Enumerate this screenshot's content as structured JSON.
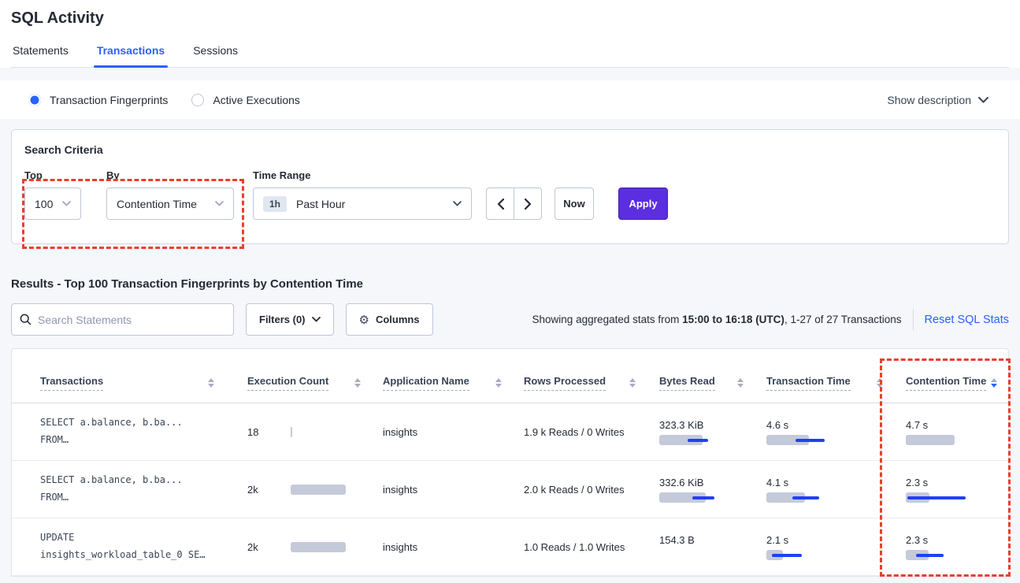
{
  "page": {
    "title": "SQL Activity"
  },
  "tabs": [
    {
      "label": "Statements"
    },
    {
      "label": "Transactions"
    },
    {
      "label": "Sessions"
    }
  ],
  "view_toggle": {
    "options": [
      {
        "label": "Transaction Fingerprints",
        "selected": true
      },
      {
        "label": "Active Executions",
        "selected": false
      }
    ],
    "show_description_label": "Show description"
  },
  "search_criteria": {
    "title": "Search Criteria",
    "top": {
      "label": "Top",
      "value": "100"
    },
    "by": {
      "label": "By",
      "value": "Contention Time"
    },
    "time_range": {
      "label": "Time Range",
      "badge": "1h",
      "value": "Past Hour"
    },
    "now_label": "Now",
    "apply_label": "Apply"
  },
  "results": {
    "heading": "Results - Top 100 Transaction Fingerprints by Contention Time",
    "search_placeholder": "Search Statements",
    "filters_label": "Filters (0)",
    "columns_label": "Columns",
    "stats_prefix": "Showing aggregated stats from ",
    "stats_bold": "15:00 to 16:18 (UTC)",
    "stats_suffix": ", 1-27 of 27 Transactions",
    "reset_label": "Reset SQL Stats"
  },
  "table": {
    "columns": [
      {
        "label": "Transactions",
        "sort": "none"
      },
      {
        "label": "Execution Count",
        "sort": "none"
      },
      {
        "label": "Application Name",
        "sort": "none"
      },
      {
        "label": "Rows Processed",
        "sort": "none"
      },
      {
        "label": "Bytes Read",
        "sort": "none"
      },
      {
        "label": "Transaction Time",
        "sort": "none"
      },
      {
        "label": "Contention Time",
        "sort": "desc"
      }
    ],
    "rows": [
      {
        "sql_line1": "SELECT a.balance, b.ba...",
        "sql_line2": "FROM…",
        "execution_count": {
          "value": "18",
          "bar": 2,
          "line": null
        },
        "application_name": "insights",
        "rows_processed": "1.9 k Reads / 0 Writes",
        "bytes_read": {
          "value": "323.3 KiB",
          "bar": 55,
          "line": [
            36,
            62
          ]
        },
        "transaction_time": {
          "value": "4.6 s",
          "bar": 54,
          "line": [
            37,
            74
          ]
        },
        "contention_time": {
          "value": "4.7 s",
          "bar": 62,
          "line": null
        }
      },
      {
        "sql_line1": "SELECT a.balance, b.ba...",
        "sql_line2": "FROM…",
        "execution_count": {
          "value": "2k",
          "bar": 70,
          "line": null
        },
        "application_name": "insights",
        "rows_processed": "2.0 k Reads / 0 Writes",
        "bytes_read": {
          "value": "332.6 KiB",
          "bar": 59,
          "line": [
            42,
            70
          ]
        },
        "transaction_time": {
          "value": "4.1 s",
          "bar": 49,
          "line": [
            33,
            67
          ]
        },
        "contention_time": {
          "value": "2.3 s",
          "bar": 30,
          "line": [
            2,
            76
          ]
        }
      },
      {
        "sql_line1": "UPDATE",
        "sql_line2": "insights_workload_table_0 SE…",
        "execution_count": {
          "value": "2k",
          "bar": 70,
          "line": null
        },
        "application_name": "insights",
        "rows_processed": "1.0 Reads / 1.0 Writes",
        "bytes_read": {
          "value": "154.3 B",
          "bar": null,
          "line": null
        },
        "transaction_time": {
          "value": "2.1 s",
          "bar": 21,
          "line": [
            7,
            45
          ]
        },
        "contention_time": {
          "value": "2.3 s",
          "bar": 29,
          "line": [
            13,
            48
          ]
        }
      }
    ]
  },
  "colors": {
    "accent_blue": "#2962ff",
    "apply_purple": "#5b2ee0",
    "annotation_red": "#e8402d",
    "bar_gray": "#c5cada",
    "bar_blue": "#2140f5"
  }
}
